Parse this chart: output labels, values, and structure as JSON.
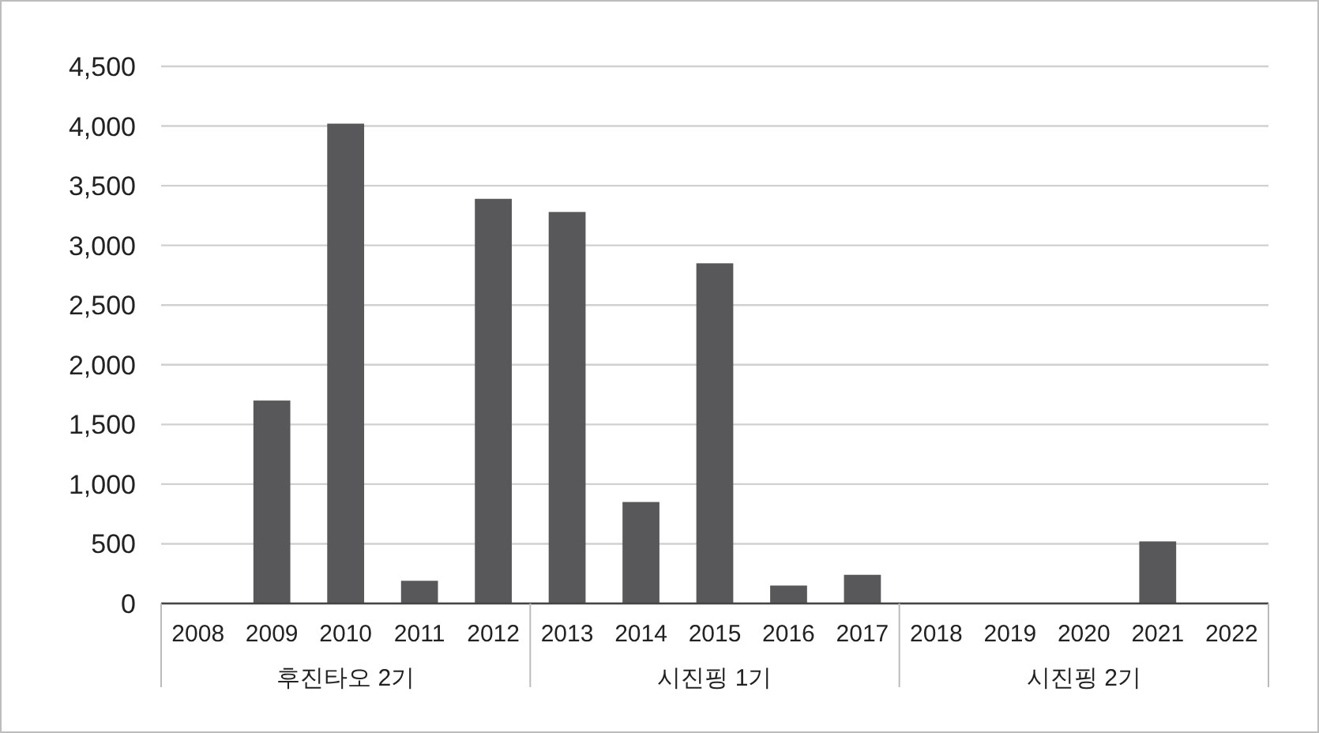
{
  "chart_data": {
    "type": "bar",
    "categories": [
      "2008",
      "2009",
      "2010",
      "2011",
      "2012",
      "2013",
      "2014",
      "2015",
      "2016",
      "2017",
      "2018",
      "2019",
      "2020",
      "2021",
      "2022"
    ],
    "values": [
      0,
      1700,
      4020,
      190,
      3390,
      3280,
      850,
      2850,
      150,
      240,
      0,
      0,
      0,
      520,
      0
    ],
    "color": "#58585a",
    "ylim": [
      0,
      4500
    ],
    "yticks": [
      {
        "value": 0,
        "label": "0"
      },
      {
        "value": 500,
        "label": "500"
      },
      {
        "value": 1000,
        "label": "1,000"
      },
      {
        "value": 1500,
        "label": "1,500"
      },
      {
        "value": 2000,
        "label": "2,000"
      },
      {
        "value": 2500,
        "label": "2,500"
      },
      {
        "value": 3000,
        "label": "3,000"
      },
      {
        "value": 3500,
        "label": "3,500"
      },
      {
        "value": 4000,
        "label": "4,000"
      },
      {
        "value": 4500,
        "label": "4,500"
      }
    ],
    "grid": "y",
    "annotations": [
      "후진타오 2기",
      "시진핑 1기",
      "시진핑 2기"
    ]
  }
}
